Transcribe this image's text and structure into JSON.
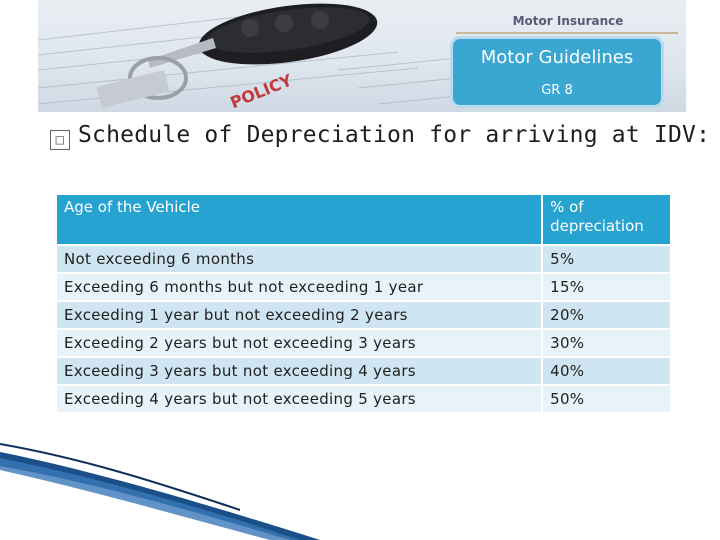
{
  "banner": {
    "brand": "Motor Insurance",
    "guide_title": "Motor Guidelines",
    "guide_sub": "GR 8",
    "art_text": "POLICY"
  },
  "heading": {
    "bullet": "□",
    "text": "Schedule of Depreciation  for arriving at IDV:"
  },
  "table": {
    "headers": [
      "Age of the Vehicle",
      "% of depreciation"
    ],
    "rows": [
      [
        "Not exceeding 6 months",
        "5%"
      ],
      [
        "Exceeding 6 months but not exceeding 1 year",
        "15%"
      ],
      [
        "Exceeding 1 year but not exceeding 2 years",
        "20%"
      ],
      [
        "Exceeding 2 years but not exceeding 3 years",
        "30%"
      ],
      [
        "Exceeding 3 years but not exceeding 4 years",
        "40%"
      ],
      [
        "Exceeding 4 years but not exceeding 5 years",
        "50%"
      ]
    ]
  },
  "colors": {
    "header_bg": "#27a3d1",
    "row_dark": "#cfe6f2",
    "row_light": "#e8f3f9",
    "accent_blue": "#3aa7d3"
  }
}
